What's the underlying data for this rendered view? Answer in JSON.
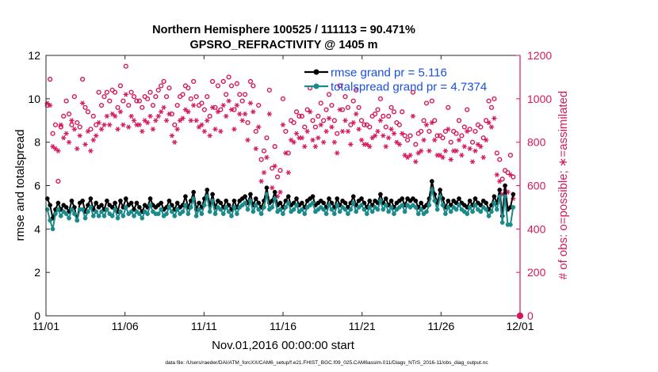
{
  "chart_data": {
    "type": "line",
    "title": "Northern Hemisphere 100525 / 111113 = 90.471%",
    "subtitle": "GPSRO_REFRACTIVITY @ 1405 m",
    "xlabel": "Nov.01,2016 00:00:00 start",
    "ylabel": "rmse and totalspread",
    "y2label": "# of obs: o=possible; ∗=assimilated",
    "footer": "data file: /Users/raeder/DAI/ATM_forcXX/CAM6_setup/f.e21.FHIST_BGC.f09_025.CAM6assim.011/Diags_NTrS_2016-11/obs_diag_output.nc",
    "xlim": [
      0,
      30
    ],
    "ylim": [
      0,
      12
    ],
    "y2lim": [
      0,
      1200
    ],
    "x_ticks": [
      0,
      5,
      10,
      15,
      20,
      25,
      30
    ],
    "x_tick_labels": [
      "11/01",
      "11/06",
      "11/11",
      "11/16",
      "11/21",
      "11/26",
      "12/01"
    ],
    "y_ticks": [
      0,
      2,
      4,
      6,
      8,
      10,
      12
    ],
    "y2_ticks": [
      0,
      200,
      400,
      600,
      800,
      1000,
      1200
    ],
    "legend_position": "top-right",
    "colors": {
      "rmse": "#000000",
      "spread": "#1b8a8a",
      "obs": "#d6175c",
      "axis": "#262626"
    },
    "series": [
      {
        "name": "rmse grand pr = 5.116",
        "axis": "left",
        "style": "line-marker",
        "values": [
          5.4,
          5.1,
          4.5,
          4.9,
          5.2,
          4.9,
          5.1,
          5.0,
          4.8,
          5.3,
          5.0,
          4.4,
          5.2,
          5.3,
          4.8,
          5.1,
          5.4,
          4.9,
          5.2,
          5.0,
          5.1,
          4.9,
          5.3,
          5.1,
          5.0,
          5.2,
          4.8,
          5.3,
          5.0,
          5.4,
          5.1,
          5.2,
          4.9,
          5.2,
          5.0,
          4.8,
          5.1,
          5.0,
          5.4,
          5.1,
          5.0,
          5.1,
          5.2,
          4.9,
          5.0,
          5.3,
          5.1,
          4.9,
          5.2,
          5.0,
          5.1,
          5.5,
          5.0,
          5.3,
          5.7,
          4.9,
          5.2,
          5.0,
          5.4,
          5.8,
          5.1,
          5.6,
          5.0,
          5.3,
          5.2,
          5.0,
          5.3,
          5.1,
          4.9,
          5.3,
          5.0,
          5.3,
          5.4,
          5.5,
          5.2,
          5.6,
          5.1,
          5.4,
          5.2,
          5.0,
          5.3,
          5.9,
          5.2,
          5.3,
          5.7,
          5.1,
          5.2,
          5.0,
          5.3,
          5.5,
          5.1,
          5.2,
          5.4,
          5.1,
          5.2,
          5.0,
          5.3,
          5.4,
          5.5,
          5.1,
          5.2,
          5.3,
          5.2,
          5.0,
          5.4,
          5.2,
          5.0,
          5.4,
          5.1,
          5.3,
          5.2,
          5.0,
          5.2,
          5.5,
          5.1,
          5.3,
          5.4,
          5.2,
          5.0,
          5.3,
          5.1,
          5.3,
          5.2,
          5.6,
          5.2,
          5.4,
          5.1,
          5.3,
          5.0,
          5.2,
          5.3,
          5.4,
          5.1,
          5.4,
          5.3,
          5.4,
          5.3,
          5.0,
          5.2,
          5.0,
          5.1,
          5.4,
          6.2,
          5.6,
          5.2,
          5.8,
          5.4,
          5.0,
          5.3,
          5.1,
          5.3,
          5.2,
          5.4,
          5.2,
          5.1,
          5.0,
          5.3,
          5.1,
          5.4,
          5.2,
          5.1,
          5.3,
          5.2,
          4.9,
          5.1,
          5.5,
          5.2,
          5.8,
          4.6,
          6.0,
          4.9,
          5.0,
          5.6
        ]
      },
      {
        "name": "totalspread grand pr = 4.7374",
        "axis": "left",
        "style": "line-marker",
        "values": [
          4.9,
          4.4,
          4.0,
          4.7,
          4.9,
          4.6,
          4.8,
          4.7,
          4.5,
          4.9,
          4.7,
          4.4,
          4.9,
          4.9,
          4.5,
          4.8,
          5.0,
          4.6,
          4.8,
          4.6,
          4.8,
          4.6,
          4.9,
          4.7,
          4.6,
          4.9,
          4.5,
          4.8,
          4.6,
          5.0,
          4.7,
          4.8,
          4.6,
          4.8,
          4.7,
          4.5,
          4.8,
          4.7,
          5.1,
          4.8,
          4.7,
          4.7,
          4.9,
          4.6,
          4.7,
          5.0,
          4.8,
          4.6,
          4.9,
          4.7,
          4.8,
          5.1,
          4.7,
          5.0,
          5.4,
          4.6,
          4.9,
          4.7,
          5.1,
          5.5,
          4.8,
          5.3,
          4.7,
          5.0,
          4.9,
          4.7,
          5.0,
          4.8,
          4.6,
          5.0,
          4.7,
          5.0,
          5.1,
          5.2,
          4.9,
          5.3,
          4.8,
          5.1,
          4.9,
          4.7,
          5.0,
          5.6,
          4.9,
          5.0,
          5.4,
          4.8,
          4.9,
          4.7,
          5.0,
          5.2,
          4.8,
          4.9,
          5.1,
          4.8,
          4.9,
          4.7,
          5.0,
          5.1,
          5.2,
          4.8,
          4.9,
          5.0,
          4.9,
          4.7,
          5.1,
          4.9,
          4.7,
          5.1,
          4.8,
          5.0,
          4.9,
          4.7,
          4.9,
          5.2,
          4.8,
          5.0,
          5.1,
          4.9,
          4.7,
          5.0,
          4.8,
          5.0,
          4.9,
          5.3,
          4.9,
          5.1,
          4.8,
          5.0,
          4.7,
          4.9,
          5.0,
          5.1,
          4.8,
          5.1,
          5.0,
          5.1,
          5.0,
          4.7,
          4.9,
          4.7,
          4.8,
          5.1,
          5.8,
          5.3,
          4.9,
          5.5,
          5.1,
          4.7,
          5.0,
          4.8,
          5.0,
          4.9,
          5.1,
          4.9,
          4.8,
          4.7,
          5.0,
          4.8,
          5.1,
          4.9,
          4.8,
          5.0,
          4.9,
          4.6,
          4.8,
          5.2,
          4.9,
          5.5,
          4.3,
          5.5,
          4.2,
          4.2,
          5.0
        ]
      },
      {
        "name": "possible obs",
        "axis": "right",
        "style": "circle",
        "values": [
          970,
          1090,
          840,
          880,
          620,
          870,
          920,
          990,
          930,
          880,
          1010,
          890,
          870,
          1090,
          960,
          940,
          860,
          920,
          880,
          1030,
          970,
          1010,
          1030,
          990,
          1040,
          1030,
          960,
          1060,
          990,
          1150,
          970,
          1030,
          1010,
          990,
          990,
          960,
          1010,
          1000,
          1030,
          970,
          1010,
          1040,
          1060,
          1080,
          1010,
          1050,
          930,
          880,
          970,
          1010,
          1020,
          1060,
          1050,
          1000,
          1080,
          1010,
          970,
          980,
          950,
          1010,
          920,
          1080,
          960,
          1060,
          950,
          1080,
          1020,
          1100,
          1060,
          950,
          1070,
          1020,
          990,
          1020,
          890,
          1080,
          1060,
          850,
          970,
          720,
          760,
          820,
          1040,
          680,
          780,
          640,
          670,
          1000,
          850,
          750,
          900,
          890,
          940,
          920,
          920,
          870,
          950,
          1050,
          900,
          870,
          920,
          980,
          900,
          950,
          1020,
          970,
          900,
          840,
          1060,
          950,
          1010,
          960,
          880,
          990,
          1040,
          960,
          900,
          880,
          880,
          870,
          920,
          930,
          950,
          1000,
          920,
          870,
          920,
          960,
          940,
          890,
          880,
          940,
          830,
          810,
          830,
          1030,
          790,
          840,
          850,
          900,
          980,
          850,
          990,
          900,
          830,
          830,
          820,
          850,
          960,
          800,
          850,
          840,
          900,
          830,
          870,
          950,
          860,
          800,
          850,
          880,
          870,
          820,
          900,
          990,
          960,
          1000,
          750,
          720,
          630,
          670,
          660,
          740,
          640
        ]
      },
      {
        "name": "assimilated obs",
        "axis": "right",
        "style": "asterisk",
        "values": [
          980,
          970,
          780,
          770,
          760,
          880,
          820,
          840,
          800,
          900,
          860,
          770,
          830,
          980,
          790,
          850,
          760,
          810,
          830,
          890,
          860,
          880,
          920,
          880,
          930,
          920,
          860,
          940,
          880,
          1020,
          870,
          920,
          900,
          880,
          880,
          850,
          900,
          890,
          920,
          860,
          900,
          920,
          940,
          960,
          900,
          930,
          830,
          800,
          860,
          900,
          910,
          950,
          940,
          900,
          970,
          900,
          870,
          880,
          850,
          900,
          830,
          960,
          860,
          940,
          850,
          970,
          920,
          990,
          950,
          860,
          970,
          930,
          900,
          930,
          810,
          980,
          940,
          770,
          870,
          620,
          660,
          730,
          930,
          590,
          690,
          550,
          570,
          880,
          750,
          660,
          810,
          800,
          840,
          820,
          820,
          780,
          850,
          940,
          810,
          780,
          820,
          880,
          800,
          850,
          910,
          870,
          800,
          750,
          950,
          850,
          900,
          850,
          790,
          890,
          930,
          860,
          810,
          790,
          790,
          780,
          820,
          830,
          850,
          900,
          830,
          780,
          820,
          860,
          840,
          800,
          790,
          840,
          740,
          730,
          740,
          920,
          710,
          750,
          760,
          810,
          880,
          760,
          890,
          810,
          740,
          740,
          730,
          760,
          860,
          720,
          760,
          760,
          810,
          740,
          780,
          850,
          770,
          710,
          760,
          790,
          780,
          730,
          810,
          890,
          870,
          910,
          650,
          620,
          560,
          580,
          570,
          650,
          540
        ]
      }
    ],
    "extra_points": [
      {
        "name": "end-point possible",
        "axis": "right",
        "x": 30,
        "value": 0
      },
      {
        "name": "end-point assimilated",
        "axis": "right",
        "x": 30,
        "value": 0
      }
    ]
  }
}
